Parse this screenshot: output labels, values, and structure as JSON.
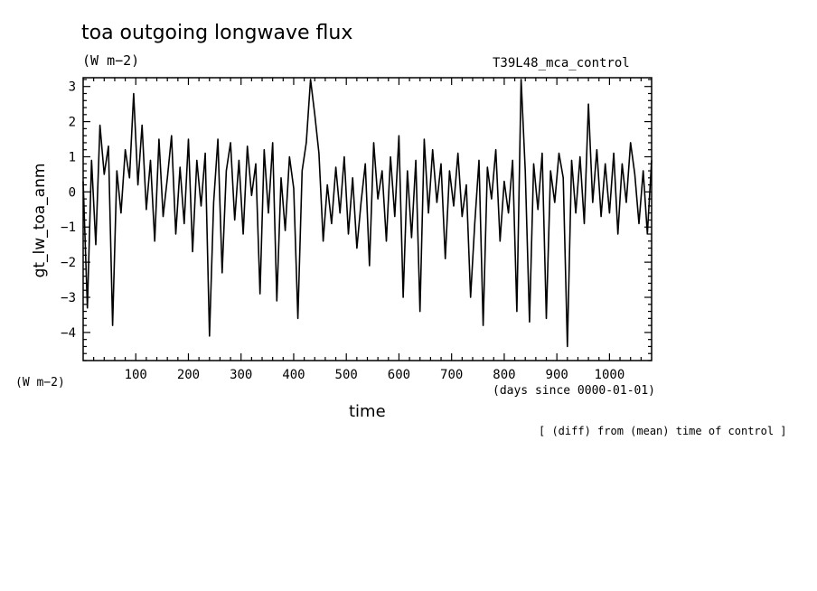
{
  "chart_data": {
    "type": "line",
    "title": "toa outgoing longwave flux",
    "units": "(W m−2)",
    "run_label": "T39L48_mca_control",
    "ylabel": "gt_lw_toa_anm",
    "yunits": "(W m−2)",
    "xlabel": "time",
    "xunits": "(days since 0000-01-01)",
    "note": "[ (diff) from (mean) time of control ]",
    "xlim": [
      0,
      1080
    ],
    "ylim": [
      -4.8,
      3.25
    ],
    "xticks": [
      100,
      200,
      300,
      400,
      500,
      600,
      700,
      800,
      900,
      1000
    ],
    "yticks": [
      -4,
      -3,
      -2,
      -1,
      0,
      1,
      2,
      3
    ],
    "xtick_labels": [
      "100",
      "200",
      "300",
      "400",
      "500",
      "600",
      "700",
      "800",
      "900",
      "1000"
    ],
    "ytick_labels": [
      "−4",
      "−3",
      "−2",
      "−1",
      "0",
      "1",
      "2",
      "3"
    ],
    "grid": false,
    "series": [
      {
        "x": [
          0,
          8,
          16,
          24,
          32,
          40,
          48,
          56,
          64,
          72,
          80,
          88,
          96,
          104,
          112,
          120,
          128,
          136,
          144,
          152,
          160,
          168,
          176,
          184,
          192,
          200,
          208,
          216,
          224,
          232,
          240,
          248,
          256,
          264,
          272,
          280,
          288,
          296,
          304,
          312,
          320,
          328,
          336,
          344,
          352,
          360,
          368,
          376,
          384,
          392,
          400,
          408,
          416,
          424,
          432,
          440,
          448,
          456,
          464,
          472,
          480,
          488,
          496,
          504,
          512,
          520,
          528,
          536,
          544,
          552,
          560,
          568,
          576,
          584,
          592,
          600,
          608,
          616,
          624,
          632,
          640,
          648,
          656,
          664,
          672,
          680,
          688,
          696,
          704,
          712,
          720,
          728,
          736,
          744,
          752,
          760,
          768,
          776,
          784,
          792,
          800,
          808,
          816,
          824,
          832,
          840,
          848,
          856,
          864,
          872,
          880,
          888,
          896,
          904,
          912,
          920,
          928,
          936,
          944,
          952,
          960,
          968,
          976,
          984,
          992,
          1000,
          1008,
          1016,
          1024,
          1032,
          1040,
          1048,
          1056,
          1064,
          1072,
          1080
        ],
        "y": [
          0.3,
          -3.3,
          0.9,
          -1.5,
          1.9,
          0.5,
          1.3,
          -3.8,
          0.6,
          -0.6,
          1.2,
          0.4,
          2.8,
          0.2,
          1.9,
          -0.5,
          0.9,
          -1.4,
          1.5,
          -0.7,
          0.4,
          1.6,
          -1.2,
          0.7,
          -0.9,
          1.5,
          -1.7,
          0.9,
          -0.4,
          1.1,
          -4.1,
          -0.3,
          1.5,
          -2.3,
          0.6,
          1.4,
          -0.8,
          0.9,
          -1.2,
          1.3,
          -0.1,
          0.8,
          -2.9,
          1.2,
          -0.6,
          1.4,
          -3.1,
          0.4,
          -1.1,
          1.0,
          0.1,
          -3.6,
          0.6,
          1.4,
          3.2,
          2.2,
          1.1,
          -1.4,
          0.2,
          -0.9,
          0.7,
          -0.6,
          1.0,
          -1.2,
          0.4,
          -1.6,
          -0.3,
          0.8,
          -2.1,
          1.4,
          -0.2,
          0.6,
          -1.4,
          1.0,
          -0.7,
          1.6,
          -3.0,
          0.6,
          -1.3,
          0.9,
          -3.4,
          1.5,
          -0.6,
          1.2,
          -0.3,
          0.8,
          -1.9,
          0.6,
          -0.4,
          1.1,
          -0.7,
          0.2,
          -3.0,
          -0.9,
          0.9,
          -3.8,
          0.7,
          -0.2,
          1.2,
          -1.4,
          0.3,
          -0.6,
          0.9,
          -3.4,
          3.2,
          0.6,
          -3.7,
          0.8,
          -0.5,
          1.1,
          -3.6,
          0.6,
          -0.3,
          1.1,
          0.4,
          -4.4,
          0.9,
          -0.6,
          1.0,
          -0.9,
          2.5,
          -0.3,
          1.2,
          -0.7,
          0.8,
          -0.6,
          1.1,
          -1.2,
          0.8,
          -0.3,
          1.4,
          0.5,
          -0.9,
          0.6,
          -1.2,
          0.9
        ]
      }
    ]
  }
}
